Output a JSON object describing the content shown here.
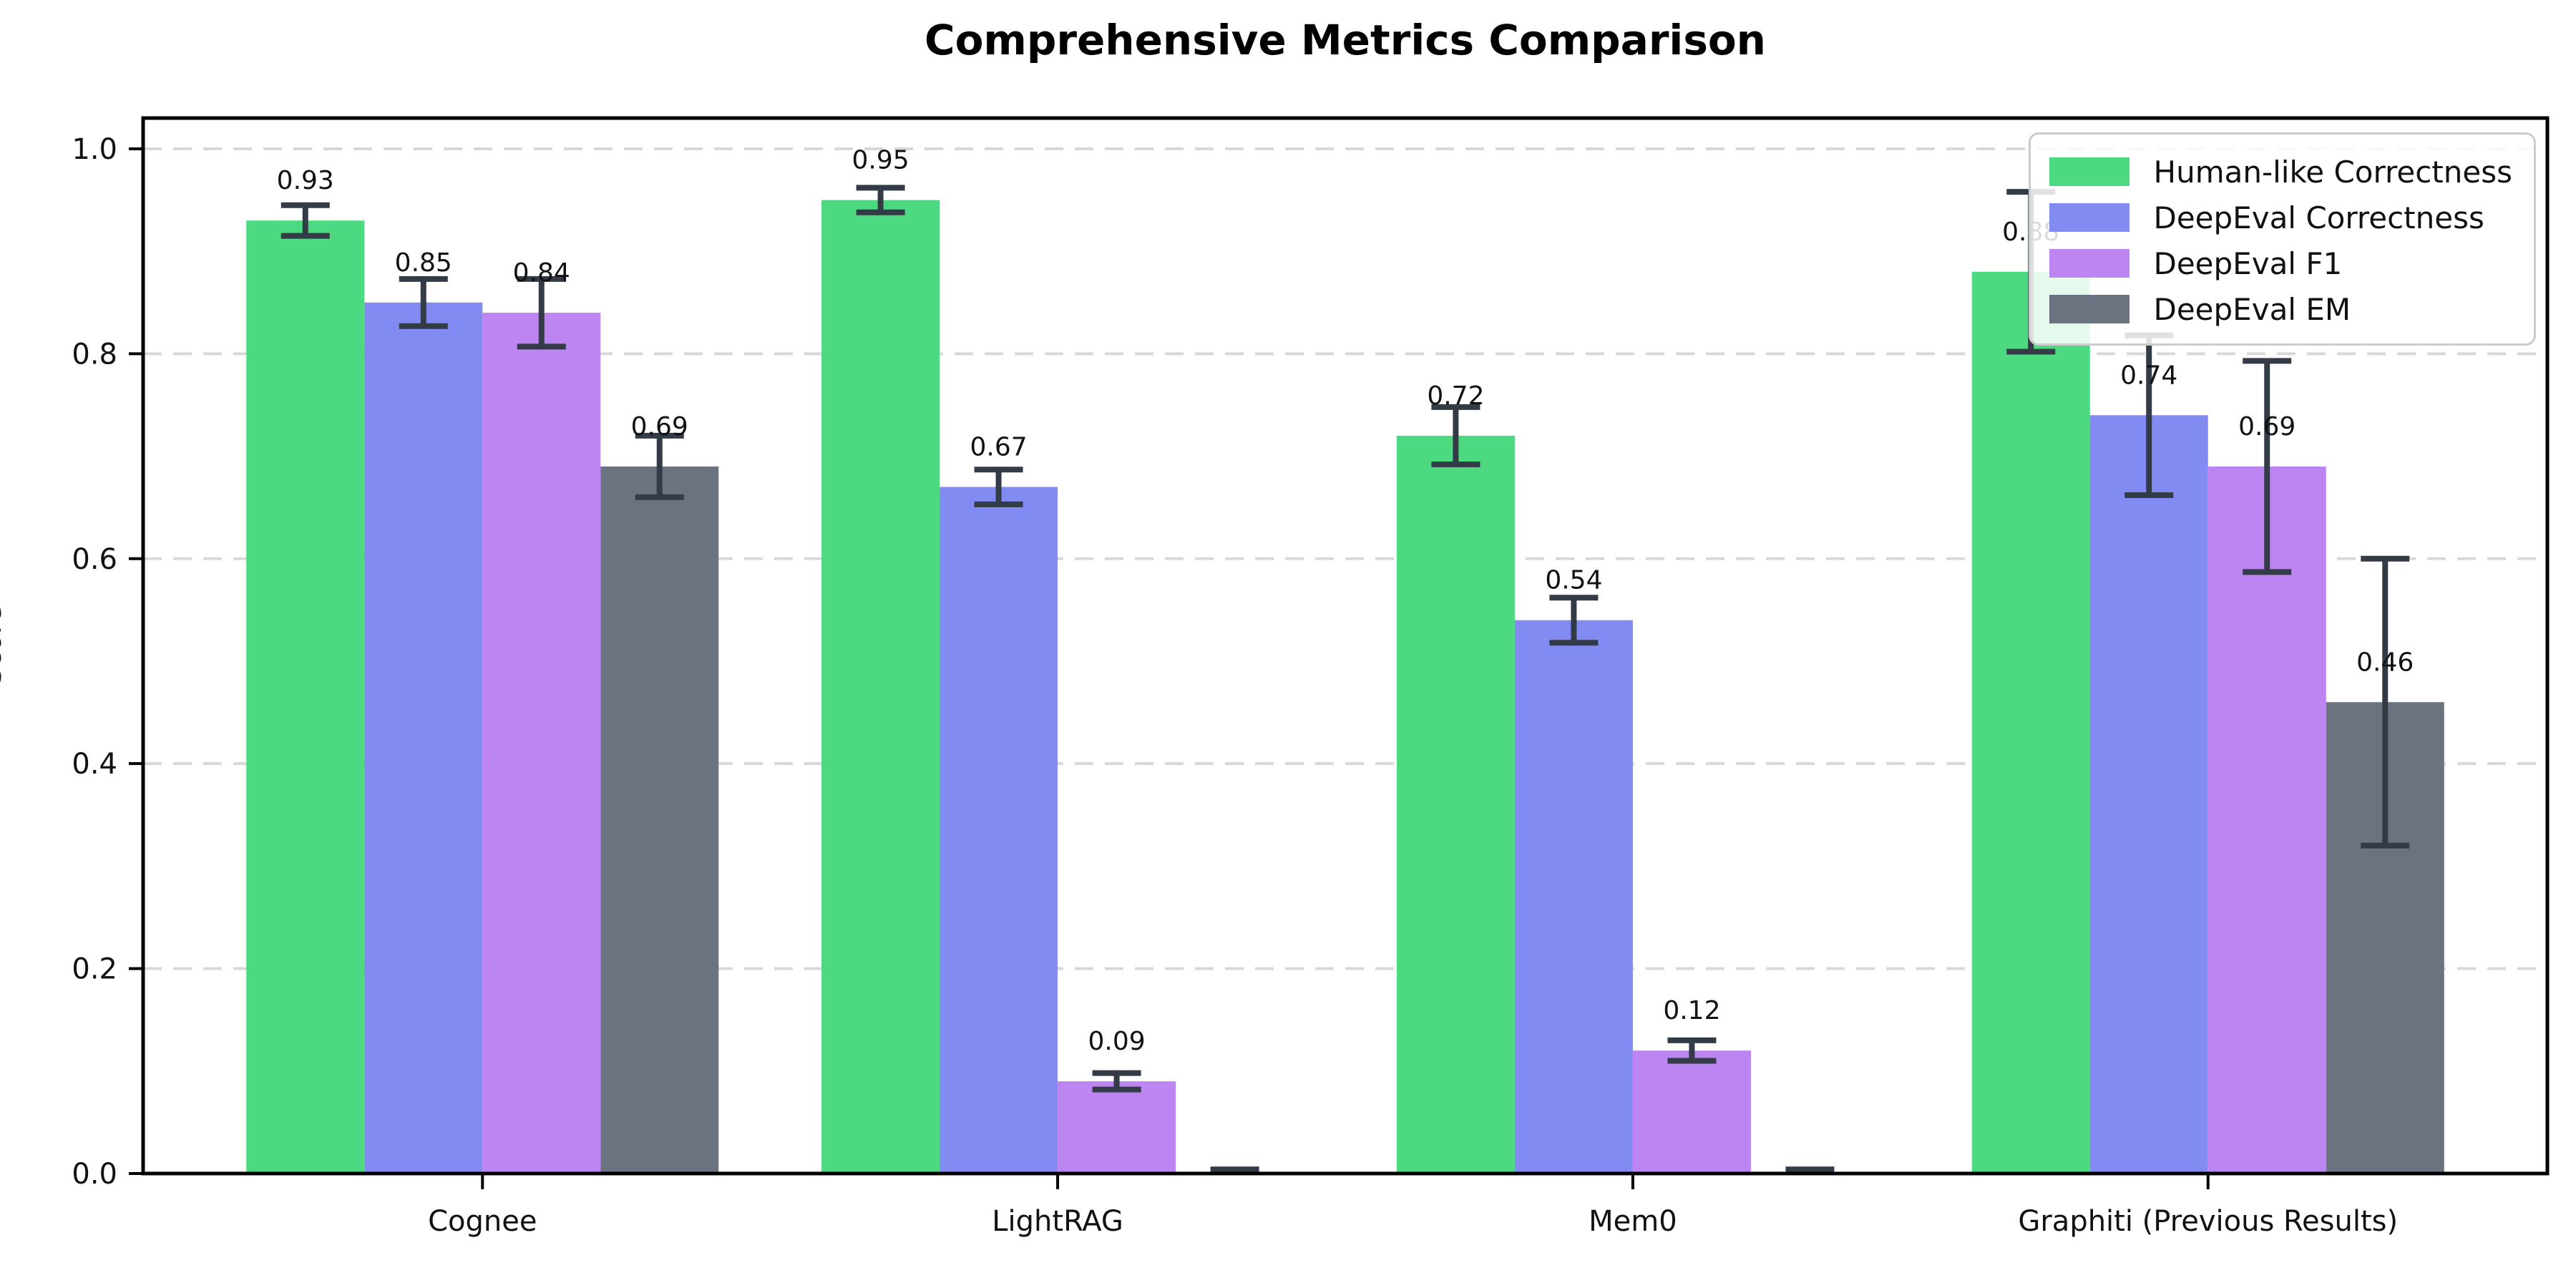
{
  "chart_data": {
    "type": "bar",
    "title": "Comprehensive Metrics Comparison",
    "ylabel": "Score",
    "xlabel": "",
    "categories": [
      "Cognee",
      "LightRAG",
      "Mem0",
      "Graphiti (Previous Results)"
    ],
    "series": [
      {
        "name": "Human-like Correctness",
        "color": "#4cd980",
        "values": [
          0.93,
          0.95,
          0.72,
          0.88
        ],
        "errors": [
          0.015,
          0.012,
          0.028,
          0.078
        ]
      },
      {
        "name": "DeepEval Correctness",
        "color": "#818bf2",
        "values": [
          0.85,
          0.67,
          0.54,
          0.74
        ],
        "errors": [
          0.023,
          0.017,
          0.022,
          0.078
        ]
      },
      {
        "name": "DeepEval F1",
        "color": "#bd85f2",
        "values": [
          0.84,
          0.09,
          0.12,
          0.69
        ],
        "errors": [
          0.033,
          0.008,
          0.01,
          0.103
        ]
      },
      {
        "name": "DeepEval EM",
        "color": "#6b7280",
        "values": [
          0.69,
          0.0,
          0.0,
          0.46
        ],
        "errors": [
          0.03,
          0.004,
          0.004,
          0.14
        ]
      }
    ],
    "value_labels": [
      [
        "0.93",
        "0.95",
        "0.72",
        "0.88"
      ],
      [
        "0.85",
        "0.67",
        "0.54",
        "0.74"
      ],
      [
        "0.84",
        "0.09",
        "0.12",
        "0.69"
      ],
      [
        "0.69",
        "",
        "",
        "0.46"
      ]
    ],
    "ylim": [
      0.0,
      1.03
    ],
    "yticks": [
      "0.0",
      "0.2",
      "0.4",
      "0.6",
      "0.8",
      "1.0"
    ],
    "grid": "horizontal-dashed",
    "legend_position": "upper right",
    "error_bar_color": "#333b46",
    "axis_color": "#000000",
    "gridline_color": "#d8d8d8"
  }
}
